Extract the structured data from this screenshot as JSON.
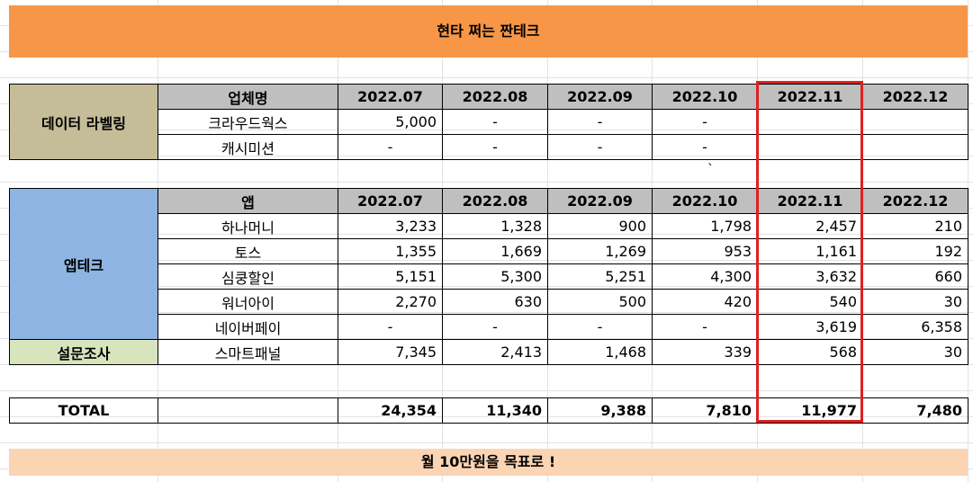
{
  "title": "현타 쩌는 짠테크",
  "footer": "월 10만원을 목표로 !",
  "stray_mark": "`",
  "labeling": {
    "category": "데이터 라벨링",
    "header": "업체명",
    "months": [
      "2022.07",
      "2022.08",
      "2022.09",
      "2022.10",
      "2022.11",
      "2022.12"
    ],
    "rows": [
      {
        "name": "크라우드웍스",
        "values": [
          "5,000",
          "-",
          "-",
          "-",
          "",
          ""
        ]
      },
      {
        "name": "캐시미션",
        "values": [
          "-",
          "-",
          "-",
          "-",
          "",
          ""
        ]
      }
    ]
  },
  "apptech": {
    "category": "앱테크",
    "header": "앱",
    "months": [
      "2022.07",
      "2022.08",
      "2022.09",
      "2022.10",
      "2022.11",
      "2022.12"
    ],
    "rows": [
      {
        "name": "하나머니",
        "values": [
          "3,233",
          "1,328",
          "900",
          "1,798",
          "2,457",
          "210"
        ]
      },
      {
        "name": "토스",
        "values": [
          "1,355",
          "1,669",
          "1,269",
          "953",
          "1,161",
          "192"
        ]
      },
      {
        "name": "심쿵할인",
        "values": [
          "5,151",
          "5,300",
          "5,251",
          "4,300",
          "3,632",
          "660"
        ]
      },
      {
        "name": "워너아이",
        "values": [
          "2,270",
          "630",
          "500",
          "420",
          "540",
          "30"
        ]
      },
      {
        "name": "네이버페이",
        "values": [
          "-",
          "-",
          "-",
          "-",
          "3,619",
          "6,358"
        ]
      }
    ]
  },
  "survey": {
    "category": "설문조사",
    "rows": [
      {
        "name": "스마트패널",
        "values": [
          "7,345",
          "2,413",
          "1,468",
          "339",
          "568",
          "30"
        ]
      }
    ]
  },
  "total": {
    "label": "TOTAL",
    "values": [
      "24,354",
      "11,340",
      "9,388",
      "7,810",
      "11,977",
      "7,480"
    ]
  },
  "colors": {
    "title_bg": "#f79646",
    "footer_bg": "#fbd4b4",
    "labeling_bg": "#c4bd97",
    "apptech_bg": "#8db4e2",
    "survey_bg": "#d8e4bc",
    "header_bg": "#bfbfbf",
    "highlight_border": "#e02020"
  }
}
